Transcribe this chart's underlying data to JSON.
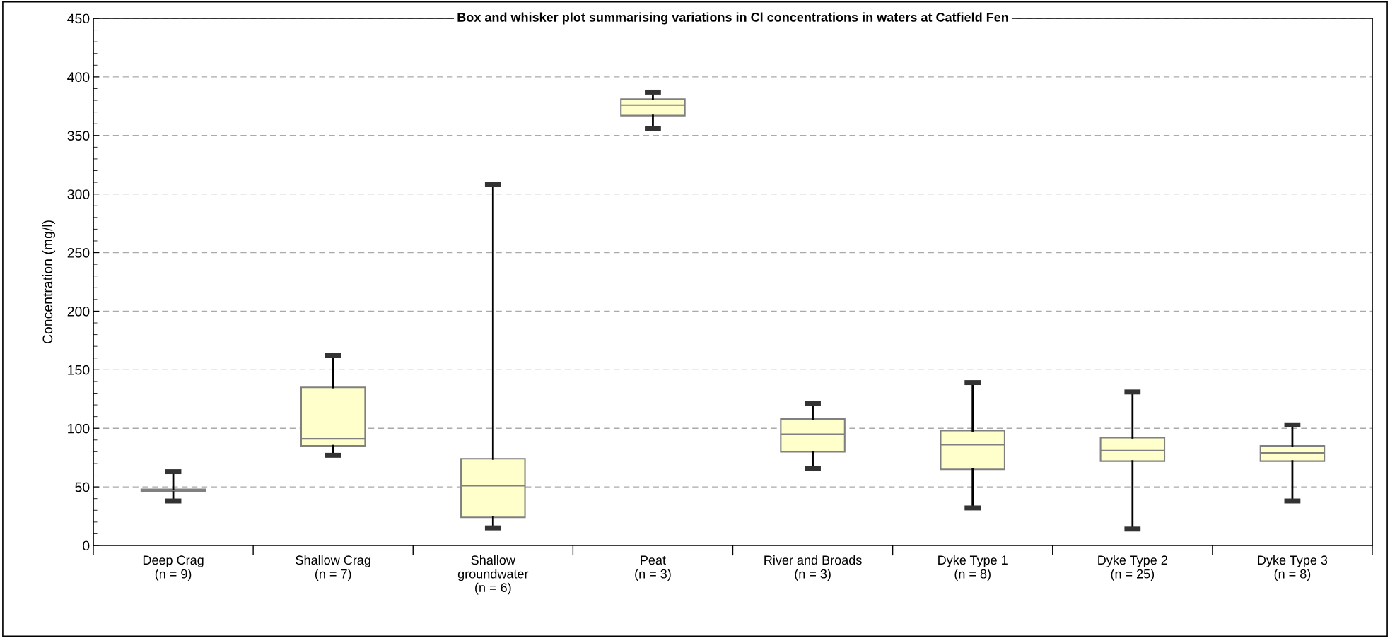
{
  "chart_data": {
    "type": "box",
    "title": "Box and whisker plot summarising variations in Cl concentrations in waters at Catfield Fen",
    "ylabel": "Concentration (mg/l)",
    "categories": [
      "Deep Crag\n(n = 9)",
      "Shallow Crag\n(n = 7)",
      "Shallow\ngroundwater\n(n = 6)",
      "Peat\n(n = 3)",
      "River and Broads\n(n = 3)",
      "Dyke Type 1\n(n = 8)",
      "Dyke Type 2\n(n = 25)",
      "Dyke Type 3\n(n = 8)"
    ],
    "color": "#ffffcc",
    "boxes": [
      {
        "low": 38,
        "q1": 46,
        "median": 47,
        "q3": 48,
        "high": 63
      },
      {
        "low": 77,
        "q1": 85,
        "median": 91,
        "q3": 135,
        "high": 162
      },
      {
        "low": 15,
        "q1": 24,
        "median": 51,
        "q3": 74,
        "high": 308
      },
      {
        "low": 356,
        "q1": 367,
        "median": 376,
        "q3": 381,
        "high": 387
      },
      {
        "low": 66,
        "q1": 80,
        "median": 95,
        "q3": 108,
        "high": 121
      },
      {
        "low": 32,
        "q1": 65,
        "median": 86,
        "q3": 98,
        "high": 139
      },
      {
        "low": 14,
        "q1": 72,
        "median": 81,
        "q3": 92,
        "high": 131
      },
      {
        "low": 38,
        "q1": 72,
        "median": 79,
        "q3": 85,
        "high": 103
      }
    ],
    "ylim": [
      0,
      450
    ],
    "yticks": [
      0,
      50,
      100,
      150,
      200,
      250,
      300,
      350,
      400,
      450
    ],
    "grid": "y"
  }
}
